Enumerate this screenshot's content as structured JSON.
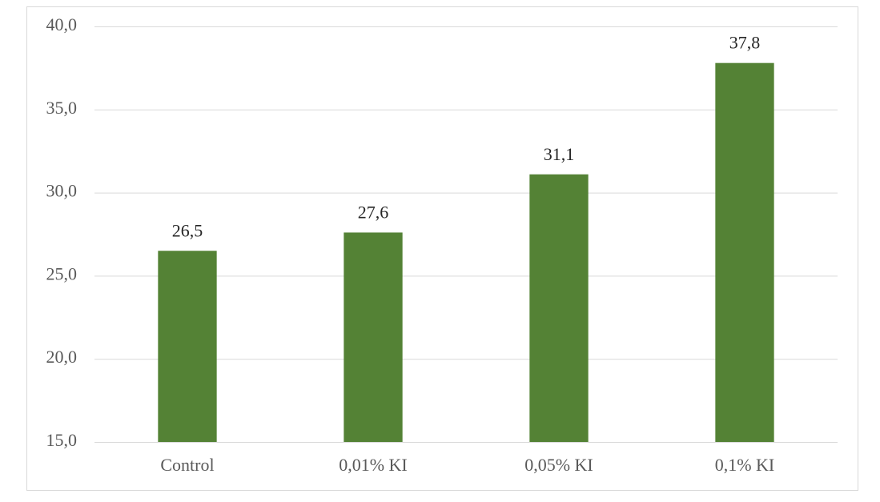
{
  "chart_data": {
    "type": "bar",
    "categories": [
      "Control",
      "0,01% KI",
      "0,05% KI",
      "0,1% KI"
    ],
    "values": [
      26.5,
      27.6,
      31.1,
      37.8
    ],
    "value_labels": [
      "26,5",
      "27,6",
      "31,1",
      "37,8"
    ],
    "color": "#548235",
    "ylim": [
      15,
      40
    ],
    "yticks": [
      {
        "value": 15,
        "label": "15,0"
      },
      {
        "value": 20,
        "label": "20,0"
      },
      {
        "value": 25,
        "label": "25,0"
      },
      {
        "value": 30,
        "label": "30,0"
      },
      {
        "value": 35,
        "label": "35,0"
      },
      {
        "value": 40,
        "label": "40,0"
      }
    ],
    "grid": true
  }
}
